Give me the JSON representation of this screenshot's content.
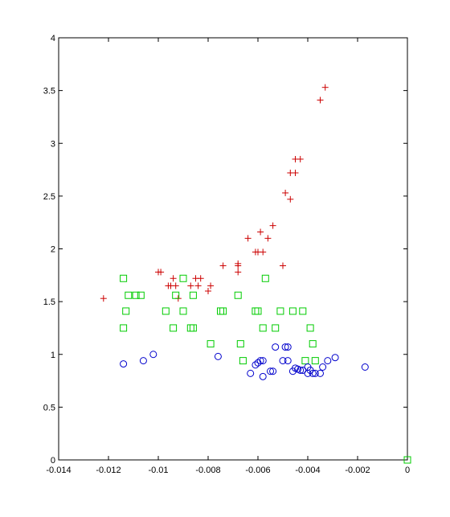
{
  "chart_data": {
    "type": "scatter",
    "title": "",
    "xlabel": "",
    "ylabel": "",
    "xlim": [
      -0.014,
      0
    ],
    "ylim": [
      0,
      4
    ],
    "x_ticks": [
      -0.014,
      -0.012,
      -0.01,
      -0.008,
      -0.006,
      -0.004,
      -0.002,
      0
    ],
    "x_tick_labels": [
      "-0.014",
      "-0.012",
      "-0.01",
      "-0.008",
      "-0.006",
      "-0.004",
      "-0.002",
      "0"
    ],
    "y_ticks": [
      0,
      0.5,
      1,
      1.5,
      2,
      2.5,
      3,
      3.5,
      4
    ],
    "y_tick_labels": [
      "0",
      "0.5",
      "1",
      "1.5",
      "2",
      "2.5",
      "3",
      "3.5",
      "4"
    ],
    "grid": false,
    "legend": "none",
    "series": [
      {
        "marker": "plus",
        "color": "#cc0000",
        "points": [
          [
            -0.0122,
            1.53
          ],
          [
            -0.01,
            1.78
          ],
          [
            -0.0099,
            1.78
          ],
          [
            -0.0096,
            1.65
          ],
          [
            -0.0095,
            1.65
          ],
          [
            -0.0094,
            1.72
          ],
          [
            -0.0093,
            1.65
          ],
          [
            -0.0092,
            1.53
          ],
          [
            -0.0087,
            1.65
          ],
          [
            -0.0085,
            1.72
          ],
          [
            -0.0084,
            1.65
          ],
          [
            -0.0083,
            1.72
          ],
          [
            -0.008,
            1.6
          ],
          [
            -0.0079,
            1.65
          ],
          [
            -0.0074,
            1.84
          ],
          [
            -0.0068,
            1.78
          ],
          [
            -0.0068,
            1.84
          ],
          [
            -0.0068,
            1.86
          ],
          [
            -0.0064,
            2.1
          ],
          [
            -0.0061,
            1.97
          ],
          [
            -0.006,
            1.97
          ],
          [
            -0.0059,
            2.16
          ],
          [
            -0.0058,
            1.97
          ],
          [
            -0.0056,
            2.1
          ],
          [
            -0.0054,
            2.22
          ],
          [
            -0.005,
            1.84
          ],
          [
            -0.0049,
            2.53
          ],
          [
            -0.0047,
            2.47
          ],
          [
            -0.0047,
            2.72
          ],
          [
            -0.0045,
            2.72
          ],
          [
            -0.0045,
            2.85
          ],
          [
            -0.0043,
            2.85
          ],
          [
            -0.0035,
            3.41
          ],
          [
            -0.0033,
            3.53
          ]
        ]
      },
      {
        "marker": "square",
        "color": "#00cc00",
        "points": [
          [
            -0.0114,
            1.72
          ],
          [
            -0.0114,
            1.25
          ],
          [
            -0.0113,
            1.41
          ],
          [
            -0.0112,
            1.56
          ],
          [
            -0.0109,
            1.56
          ],
          [
            -0.0107,
            1.56
          ],
          [
            -0.0097,
            1.41
          ],
          [
            -0.0094,
            1.25
          ],
          [
            -0.0093,
            1.56
          ],
          [
            -0.009,
            1.72
          ],
          [
            -0.009,
            1.41
          ],
          [
            -0.0087,
            1.25
          ],
          [
            -0.0086,
            1.56
          ],
          [
            -0.0086,
            1.25
          ],
          [
            -0.0079,
            1.1
          ],
          [
            -0.0075,
            1.41
          ],
          [
            -0.0074,
            1.41
          ],
          [
            -0.0068,
            1.56
          ],
          [
            -0.0067,
            1.1
          ],
          [
            -0.0066,
            0.94
          ],
          [
            -0.0061,
            1.41
          ],
          [
            -0.006,
            1.41
          ],
          [
            -0.0058,
            1.25
          ],
          [
            -0.0057,
            1.72
          ],
          [
            -0.0053,
            1.25
          ],
          [
            -0.0051,
            1.41
          ],
          [
            -0.0046,
            1.41
          ],
          [
            -0.0042,
            1.41
          ],
          [
            -0.0041,
            0.94
          ],
          [
            -0.0039,
            1.25
          ],
          [
            -0.0038,
            1.1
          ],
          [
            -0.0037,
            0.94
          ],
          [
            0,
            0
          ]
        ]
      },
      {
        "marker": "circle",
        "color": "#0000cc",
        "points": [
          [
            -0.0114,
            0.91
          ],
          [
            -0.0106,
            0.94
          ],
          [
            -0.0102,
            1.0
          ],
          [
            -0.0076,
            0.98
          ],
          [
            -0.0063,
            0.82
          ],
          [
            -0.0061,
            0.9
          ],
          [
            -0.006,
            0.92
          ],
          [
            -0.0059,
            0.94
          ],
          [
            -0.0058,
            0.79
          ],
          [
            -0.0058,
            0.94
          ],
          [
            -0.0055,
            0.84
          ],
          [
            -0.0054,
            0.84
          ],
          [
            -0.0053,
            1.07
          ],
          [
            -0.005,
            0.94
          ],
          [
            -0.0049,
            1.07
          ],
          [
            -0.0048,
            1.07
          ],
          [
            -0.0048,
            0.94
          ],
          [
            -0.0046,
            0.84
          ],
          [
            -0.0045,
            0.87
          ],
          [
            -0.0044,
            0.86
          ],
          [
            -0.0043,
            0.85
          ],
          [
            -0.0042,
            0.85
          ],
          [
            -0.004,
            0.88
          ],
          [
            -0.004,
            0.82
          ],
          [
            -0.0039,
            0.85
          ],
          [
            -0.0038,
            0.82
          ],
          [
            -0.0037,
            0.82
          ],
          [
            -0.0035,
            0.82
          ],
          [
            -0.0034,
            0.88
          ],
          [
            -0.0032,
            0.94
          ],
          [
            -0.0029,
            0.97
          ],
          [
            -0.0017,
            0.88
          ]
        ]
      }
    ]
  }
}
